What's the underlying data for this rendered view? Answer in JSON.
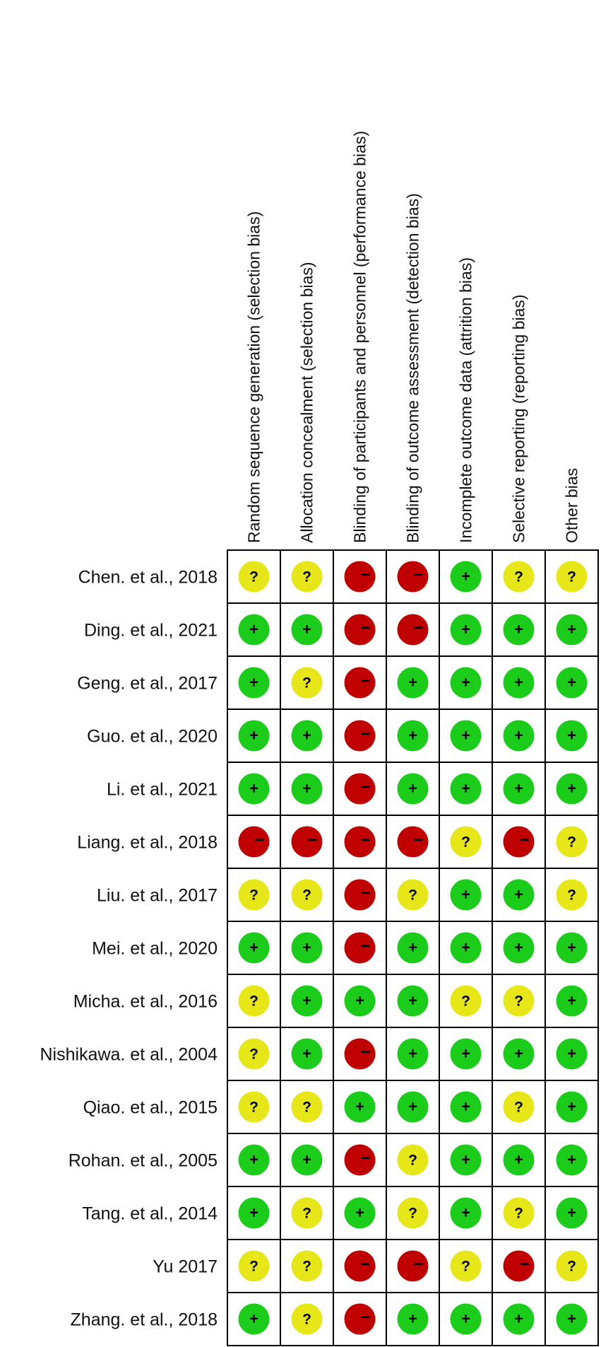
{
  "chart_data": {
    "type": "table",
    "columns": [
      "Random sequence generation (selection bias)",
      "Allocation concealment (selection bias)",
      "Blinding of participants and personnel (performance bias)",
      "Blinding of outcome assessment (detection bias)",
      "Incomplete outcome data (attrition bias)",
      "Selective reporting (reporting bias)",
      "Other bias"
    ],
    "rows": [
      "Chen. et al., 2018",
      "Ding. et al., 2021",
      "Geng. et al., 2017",
      "Guo. et al., 2020",
      "Li. et al., 2021",
      "Liang. et al., 2018",
      "Liu. et al., 2017",
      "Mei. et al., 2020",
      "Micha. et al., 2016",
      "Nishikawa. et al., 2004",
      "Qiao. et al., 2015",
      "Rohan. et al., 2005",
      "Tang. et al., 2014",
      "Yu 2017",
      "Zhang. et al., 2018"
    ],
    "judgements": [
      [
        "?",
        "?",
        "-",
        "-",
        "+",
        "?",
        "?"
      ],
      [
        "+",
        "+",
        "-",
        "-",
        "+",
        "+",
        "+"
      ],
      [
        "+",
        "?",
        "-",
        "+",
        "+",
        "+",
        "+"
      ],
      [
        "+",
        "+",
        "-",
        "+",
        "+",
        "+",
        "+"
      ],
      [
        "+",
        "+",
        "-",
        "+",
        "+",
        "+",
        "+"
      ],
      [
        "-",
        "-",
        "-",
        "-",
        "?",
        "-",
        "?"
      ],
      [
        "?",
        "?",
        "-",
        "?",
        "+",
        "+",
        "?"
      ],
      [
        "+",
        "+",
        "-",
        "+",
        "+",
        "+",
        "+"
      ],
      [
        "?",
        "+",
        "+",
        "+",
        "?",
        "?",
        "+"
      ],
      [
        "?",
        "+",
        "-",
        "+",
        "+",
        "+",
        "+"
      ],
      [
        "?",
        "?",
        "+",
        "+",
        "+",
        "?",
        "+"
      ],
      [
        "+",
        "+",
        "-",
        "?",
        "+",
        "+",
        "+"
      ],
      [
        "+",
        "?",
        "+",
        "?",
        "+",
        "?",
        "+"
      ],
      [
        "?",
        "?",
        "-",
        "-",
        "?",
        "-",
        "?"
      ],
      [
        "+",
        "?",
        "-",
        "+",
        "+",
        "+",
        "+"
      ]
    ],
    "symbol_colors": {
      "+": "#1bcc1b",
      "?": "#e6e619",
      "-": "#c00000"
    }
  }
}
